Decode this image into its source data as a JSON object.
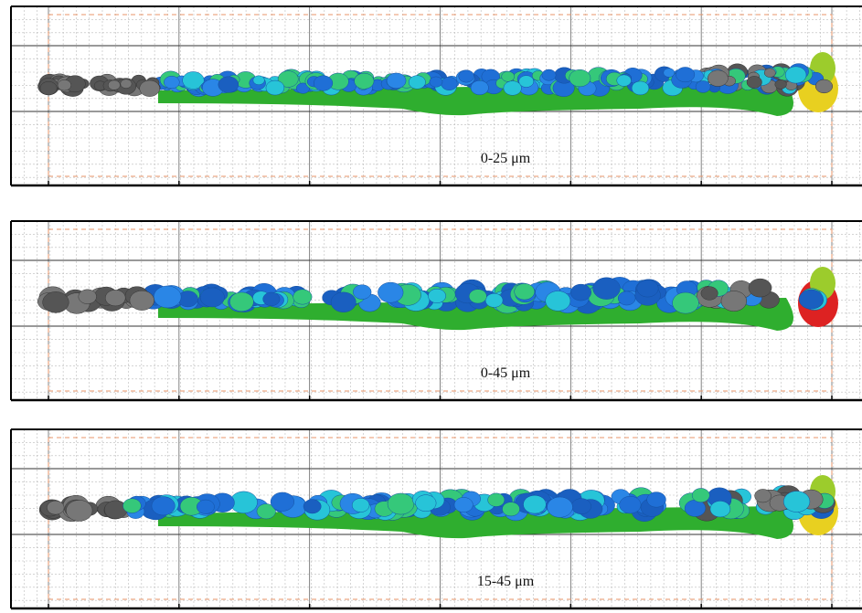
{
  "panels": [
    {
      "label": "0-25 μm"
    },
    {
      "label": "0-45 μm"
    },
    {
      "label": "15-45 μm"
    }
  ]
}
